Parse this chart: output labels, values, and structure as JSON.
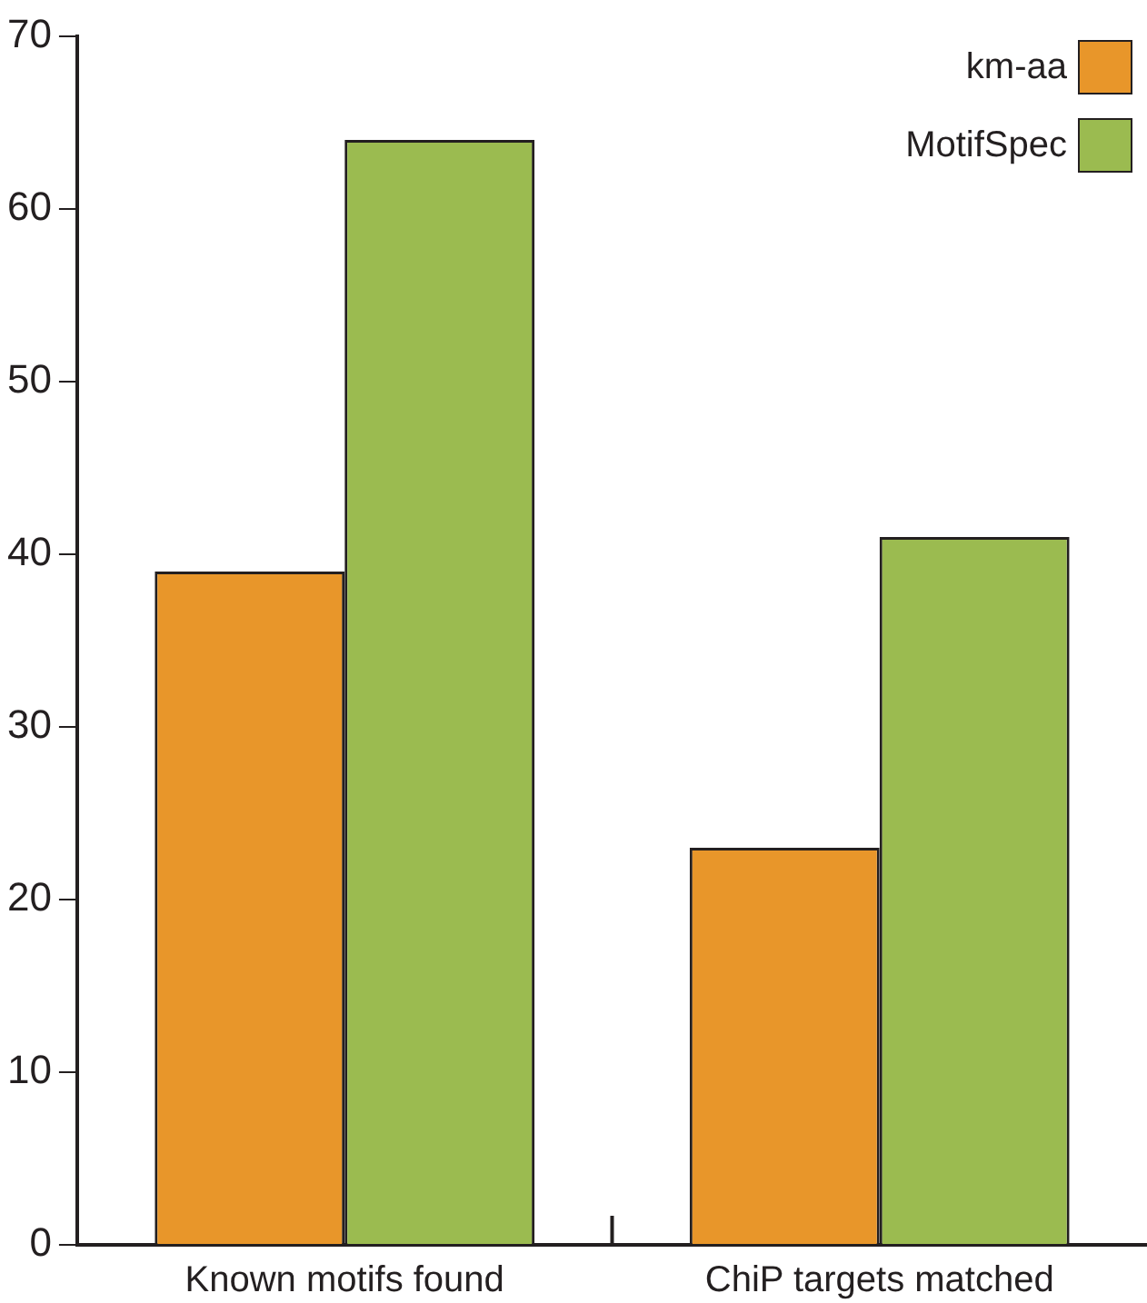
{
  "chart_data": {
    "type": "bar",
    "categories": [
      "Known motifs found",
      "ChiP targets matched"
    ],
    "series": [
      {
        "name": "km-aa",
        "color": "#e8962a",
        "values": [
          39,
          23
        ]
      },
      {
        "name": "MotifSpec",
        "color": "#9bbb50",
        "values": [
          64,
          41
        ]
      }
    ],
    "ylim": [
      0,
      70
    ],
    "yticks": [
      0,
      10,
      20,
      30,
      40,
      50,
      60,
      70
    ],
    "grid": false,
    "legend": "top right"
  }
}
